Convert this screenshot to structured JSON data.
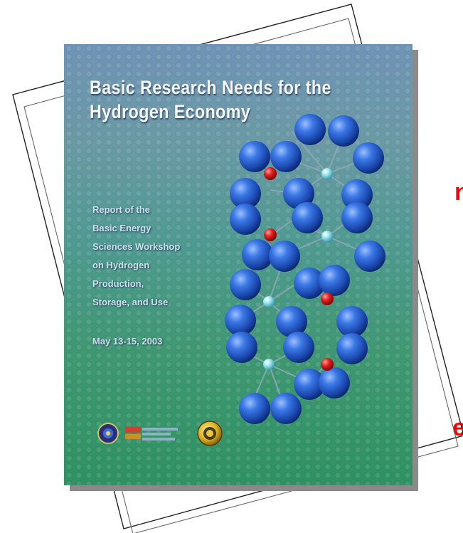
{
  "cover": {
    "title_line1": "Basic Research Needs for the",
    "title_line2": "Hydrogen Economy",
    "subtitle_lines": [
      "Report of the",
      "Basic Energy",
      "Sciences Workshop",
      "on Hydrogen",
      "Production,",
      "Storage, and Use"
    ],
    "date": "May 13-15, 2003"
  },
  "edge_letters": {
    "upper": "n",
    "lower": "e"
  },
  "colors": {
    "edge_letter": "#ff0000",
    "title_text": "#f4f8ff",
    "blue_atom": "#1f55c8",
    "red_atom": "#d01818",
    "cyan_atom": "#8fe0ec"
  },
  "logos": [
    "doe-seal-icon",
    "office-of-science-logo-icon",
    "bes-seal-icon"
  ]
}
